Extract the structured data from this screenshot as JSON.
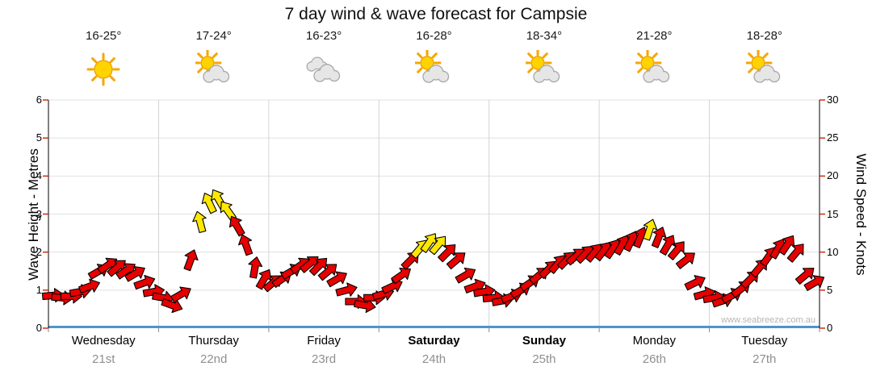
{
  "title": "7 day wind & wave forecast for Campsie",
  "watermark": "www.seabreeze.com.au",
  "axes": {
    "left_label": "Wave Height - Metres",
    "right_label": "Wind Speed - Knots",
    "left_ticks": [
      "0",
      "1",
      "2",
      "3",
      "4",
      "5",
      "6"
    ],
    "right_ticks": [
      "0",
      "5",
      "10",
      "15",
      "20",
      "25",
      "30"
    ]
  },
  "colors": {
    "arrow_red": "#e60000",
    "arrow_yellow": "#ffe800",
    "arrow_outline": "#000000",
    "baseline_blue": "#4f94cd",
    "tick_red": "#cc2200",
    "grid_h": "#e0e0e0",
    "grid_v": "#d4d4d4",
    "axis_black": "#000000",
    "date_gray": "#8f8f8f"
  },
  "chart_data": {
    "type": "wind-arrows-timeseries",
    "title": "7 day wind & wave forecast for Campsie",
    "y_left": {
      "label": "Wave Height - Metres",
      "min": 0,
      "max": 6,
      "tick": 1
    },
    "y_right": {
      "label": "Wind Speed - Knots",
      "min": 0,
      "max": 30,
      "tick": 5
    },
    "point_format": [
      "knots",
      "direction_deg_0_is_up",
      "color r=red y=yellow"
    ],
    "days": [
      {
        "name": "Wednesday",
        "date": "21st",
        "temp": "16-25°",
        "icon": "sunny",
        "bold": false,
        "points": [
          [
            4.3,
            85,
            "r"
          ],
          [
            4.0,
            95,
            "r"
          ],
          [
            4.2,
            90,
            "r"
          ],
          [
            4.8,
            80,
            "r"
          ],
          [
            5.5,
            70,
            "r"
          ],
          [
            7.5,
            60,
            "r"
          ],
          [
            8.3,
            55,
            "r"
          ],
          [
            8.0,
            50,
            "r"
          ],
          [
            7.6,
            55,
            "r"
          ],
          [
            7.2,
            60,
            "r"
          ],
          [
            6.0,
            70,
            "r"
          ],
          [
            4.8,
            80,
            "r"
          ]
        ]
      },
      {
        "name": "Thursday",
        "date": "22nd",
        "temp": "17-24°",
        "icon": "partly",
        "bold": false,
        "points": [
          [
            4.0,
            100,
            "r"
          ],
          [
            3.0,
            110,
            "r"
          ],
          [
            4.5,
            60,
            "r"
          ],
          [
            9.0,
            20,
            "r"
          ],
          [
            14.0,
            345,
            "y"
          ],
          [
            16.5,
            335,
            "y"
          ],
          [
            17.0,
            330,
            "y"
          ],
          [
            15.5,
            325,
            "y"
          ],
          [
            13.5,
            330,
            "r"
          ],
          [
            11.0,
            340,
            "r"
          ],
          [
            8.0,
            10,
            "r"
          ],
          [
            6.5,
            30,
            "r"
          ]
        ]
      },
      {
        "name": "Friday",
        "date": "23rd",
        "temp": "16-23°",
        "icon": "cloudy",
        "bold": false,
        "points": [
          [
            6.0,
            50,
            "r"
          ],
          [
            6.5,
            55,
            "r"
          ],
          [
            7.5,
            60,
            "r"
          ],
          [
            8.3,
            55,
            "r"
          ],
          [
            8.5,
            50,
            "r"
          ],
          [
            8.2,
            45,
            "r"
          ],
          [
            7.5,
            50,
            "r"
          ],
          [
            6.5,
            60,
            "r"
          ],
          [
            5.0,
            75,
            "r"
          ],
          [
            3.5,
            90,
            "r"
          ],
          [
            3.0,
            100,
            "r"
          ],
          [
            4.0,
            90,
            "r"
          ]
        ]
      },
      {
        "name": "Saturday",
        "date": "24th",
        "temp": "16-28°",
        "icon": "partly",
        "bold": true,
        "points": [
          [
            4.5,
            75,
            "r"
          ],
          [
            5.5,
            65,
            "r"
          ],
          [
            7.0,
            55,
            "r"
          ],
          [
            9.0,
            45,
            "r"
          ],
          [
            10.5,
            40,
            "y"
          ],
          [
            11.3,
            35,
            "y"
          ],
          [
            11.0,
            40,
            "y"
          ],
          [
            10.0,
            45,
            "r"
          ],
          [
            9.0,
            50,
            "r"
          ],
          [
            7.0,
            60,
            "r"
          ],
          [
            5.5,
            70,
            "r"
          ],
          [
            4.8,
            80,
            "r"
          ]
        ]
      },
      {
        "name": "Sunday",
        "date": "25th",
        "temp": "18-34°",
        "icon": "partly",
        "bold": true,
        "points": [
          [
            4.0,
            85,
            "r"
          ],
          [
            3.6,
            80,
            "r"
          ],
          [
            4.2,
            70,
            "r"
          ],
          [
            5.0,
            60,
            "r"
          ],
          [
            6.0,
            55,
            "r"
          ],
          [
            7.0,
            50,
            "r"
          ],
          [
            7.8,
            45,
            "r"
          ],
          [
            8.5,
            40,
            "r"
          ],
          [
            9.0,
            45,
            "r"
          ],
          [
            9.5,
            50,
            "r"
          ],
          [
            9.8,
            45,
            "r"
          ],
          [
            10.0,
            40,
            "r"
          ]
        ]
      },
      {
        "name": "Monday",
        "date": "26th",
        "temp": "21-28°",
        "icon": "partly",
        "bold": false,
        "points": [
          [
            10.2,
            38,
            "r"
          ],
          [
            10.5,
            34,
            "r"
          ],
          [
            11.0,
            30,
            "r"
          ],
          [
            11.5,
            26,
            "r"
          ],
          [
            12.0,
            22,
            "r"
          ],
          [
            13.0,
            18,
            "y"
          ],
          [
            12.0,
            22,
            "r"
          ],
          [
            11.0,
            30,
            "r"
          ],
          [
            10.3,
            40,
            "r"
          ],
          [
            9.0,
            52,
            "r"
          ],
          [
            6.0,
            64,
            "r"
          ],
          [
            4.5,
            75,
            "r"
          ]
        ]
      },
      {
        "name": "Tuesday",
        "date": "27th",
        "temp": "18-28°",
        "icon": "partly",
        "bold": false,
        "points": [
          [
            4.0,
            80,
            "r"
          ],
          [
            3.6,
            72,
            "r"
          ],
          [
            4.3,
            62,
            "r"
          ],
          [
            5.2,
            52,
            "r"
          ],
          [
            6.5,
            45,
            "r"
          ],
          [
            8.0,
            40,
            "r"
          ],
          [
            9.5,
            35,
            "r"
          ],
          [
            10.5,
            30,
            "r"
          ],
          [
            11.0,
            34,
            "r"
          ],
          [
            10.0,
            40,
            "r"
          ],
          [
            7.0,
            50,
            "r"
          ],
          [
            6.0,
            60,
            "r"
          ]
        ]
      }
    ]
  }
}
